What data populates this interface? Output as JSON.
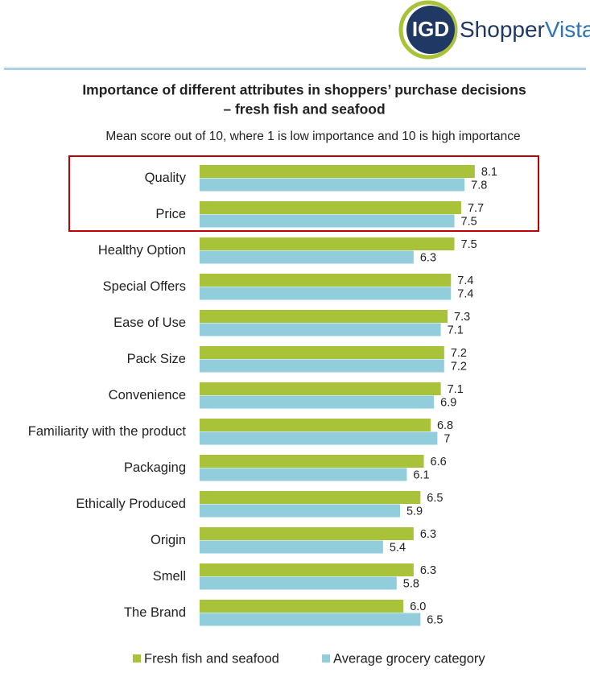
{
  "logo": {
    "mark": "IGD",
    "name_part1": "Shopper",
    "name_part2": "Vista"
  },
  "chart_data": {
    "type": "bar",
    "orientation": "horizontal",
    "title": [
      "Importance of different attributes in shoppers’ purchase decisions",
      "– fresh fish and seafood"
    ],
    "subtitle": "Mean score out of 10, where 1 is low importance and 10 is high importance",
    "categories": [
      "Quality",
      "Price",
      "Healthy Option",
      "Special Offers",
      "Ease of Use",
      "Pack Size",
      "Convenience",
      "Familiarity with the product",
      "Packaging",
      "Ethically Produced",
      "Origin",
      "Smell",
      "The Brand"
    ],
    "series": [
      {
        "name": "Fresh fish and seafood",
        "color": "#a8c23a",
        "values": [
          8.1,
          7.7,
          7.5,
          7.4,
          7.3,
          7.2,
          7.1,
          6.8,
          6.6,
          6.5,
          6.3,
          6.3,
          6.0
        ],
        "value_labels": [
          "8.1",
          "7.7",
          "7.5",
          "7.4",
          "7.3",
          "7.2",
          "7.1",
          "6.8",
          "6.6",
          "6.5",
          "6.3",
          "6.3",
          "6.0"
        ]
      },
      {
        "name": "Average grocery category",
        "color": "#92cddc",
        "values": [
          7.8,
          7.5,
          6.3,
          7.4,
          7.1,
          7.2,
          6.9,
          7,
          6.1,
          5.9,
          5.4,
          5.8,
          6.5
        ]
      }
    ],
    "legend": "bottom"
  }
}
